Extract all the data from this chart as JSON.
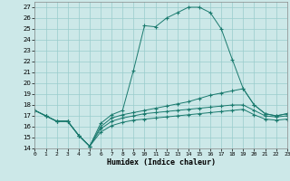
{
  "title": "",
  "xlabel": "Humidex (Indice chaleur)",
  "background_color": "#cce8e8",
  "grid_color": "#99cccc",
  "line_color": "#1a7a6e",
  "xlim": [
    0,
    23
  ],
  "ylim": [
    14,
    27.5
  ],
  "yticks": [
    14,
    15,
    16,
    17,
    18,
    19,
    20,
    21,
    22,
    23,
    24,
    25,
    26,
    27
  ],
  "xticks": [
    0,
    1,
    2,
    3,
    4,
    5,
    6,
    7,
    8,
    9,
    10,
    11,
    12,
    13,
    14,
    15,
    16,
    17,
    18,
    19,
    20,
    21,
    22,
    23
  ],
  "series": [
    [
      17.5,
      17.0,
      16.5,
      16.5,
      15.2,
      14.2,
      16.3,
      17.1,
      17.5,
      21.2,
      25.3,
      25.2,
      26.0,
      26.5,
      27.0,
      27.0,
      26.5,
      25.0,
      22.2,
      19.5,
      18.0,
      17.2,
      17.0,
      17.2
    ],
    [
      17.5,
      17.0,
      16.5,
      16.5,
      15.2,
      14.2,
      16.0,
      16.8,
      17.1,
      17.3,
      17.5,
      17.7,
      17.9,
      18.1,
      18.3,
      18.6,
      18.9,
      19.1,
      19.3,
      19.5,
      18.0,
      17.2,
      17.0,
      17.2
    ],
    [
      17.5,
      17.0,
      16.5,
      16.5,
      15.2,
      14.2,
      15.8,
      16.5,
      16.8,
      17.0,
      17.2,
      17.3,
      17.4,
      17.5,
      17.6,
      17.7,
      17.8,
      17.9,
      18.0,
      18.0,
      17.5,
      17.0,
      16.9,
      17.0
    ],
    [
      17.5,
      17.0,
      16.5,
      16.5,
      15.2,
      14.2,
      15.5,
      16.1,
      16.4,
      16.6,
      16.7,
      16.8,
      16.9,
      17.0,
      17.1,
      17.2,
      17.3,
      17.4,
      17.5,
      17.6,
      17.1,
      16.7,
      16.6,
      16.7
    ]
  ]
}
